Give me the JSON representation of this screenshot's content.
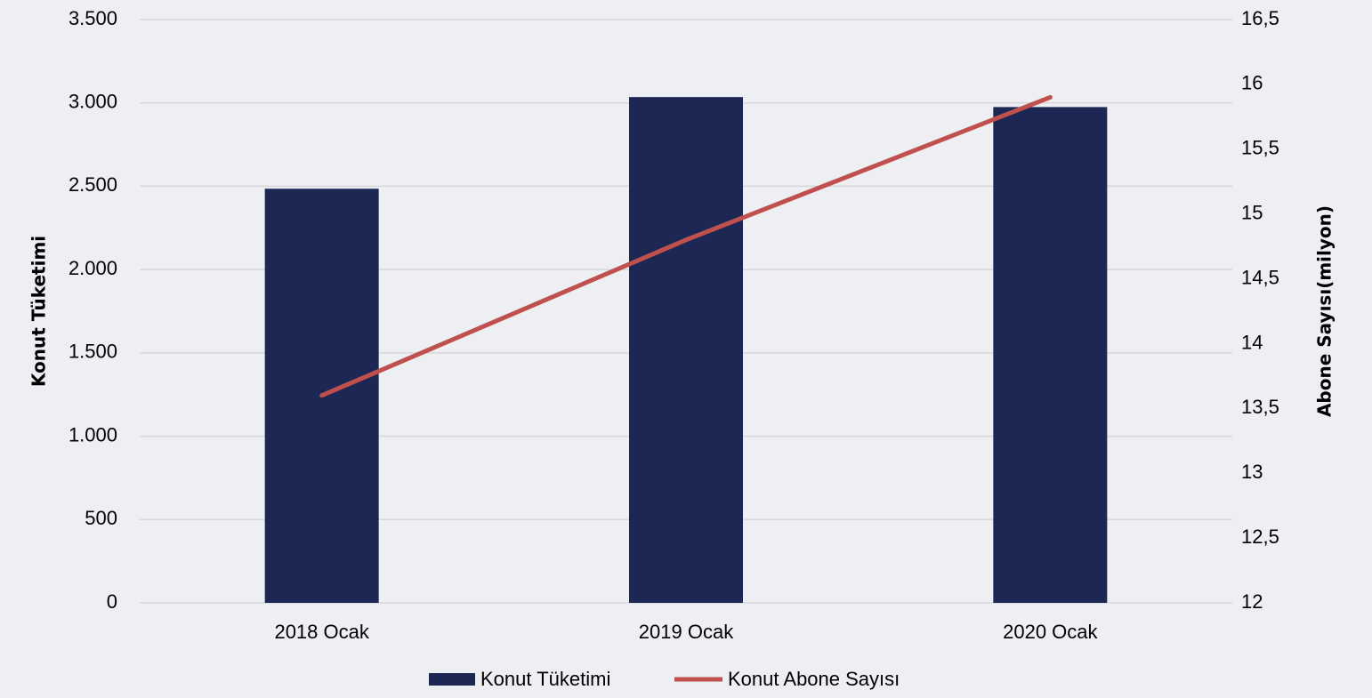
{
  "chart_data": {
    "type": "bar-line",
    "categories": [
      "2018 Ocak",
      "2019 Ocak",
      "2020 Ocak"
    ],
    "y_label": "Konut Tüketimi",
    "y2_label": "Abone Sayısı(milyon)",
    "series": [
      {
        "name": "Konut Tüketimi",
        "type": "bar",
        "color": "#1c2753",
        "values": [
          2485,
          3035,
          2975
        ]
      },
      {
        "name": "Konut Abone Sayısı",
        "type": "line",
        "axis": "y2",
        "color": "#c0504d",
        "values": [
          13.6,
          14.8,
          15.9
        ]
      }
    ],
    "ylim": [
      0,
      3500
    ],
    "yticks": [
      0,
      500,
      {
        "value": 1000,
        "label": "1.000"
      },
      {
        "value": 1500,
        "label": "1.500"
      },
      {
        "value": 2000,
        "label": "2.000"
      },
      {
        "value": 2500,
        "label": "2.500"
      },
      {
        "value": 3000,
        "label": "3.000"
      },
      {
        "value": 3500,
        "label": "3.500"
      }
    ],
    "y2lim": [
      12,
      16.5
    ],
    "y2ticks": [
      12,
      {
        "value": 12.5,
        "label": "12,5"
      },
      13,
      {
        "value": 13.5,
        "label": "13,5"
      },
      14,
      {
        "value": 14.5,
        "label": "14,5"
      },
      15,
      {
        "value": 15.5,
        "label": "15,5"
      },
      16,
      {
        "value": 16.5,
        "label": "16,5"
      }
    ],
    "grid": true
  }
}
